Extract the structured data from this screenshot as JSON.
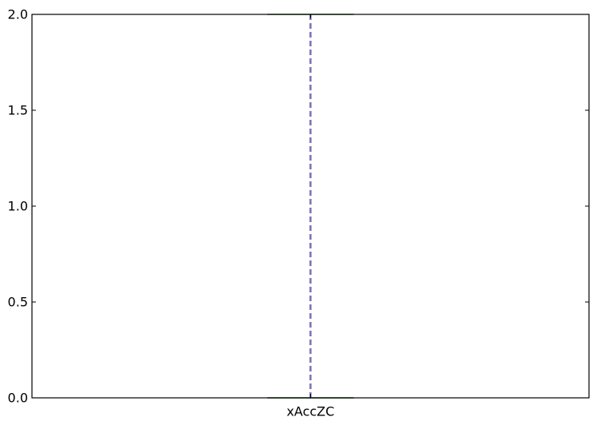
{
  "chart_data": {
    "type": "box",
    "categories": [
      "xAccZC"
    ],
    "series": [
      {
        "stats": {
          "min": 0.0,
          "q1": 0.0,
          "median": 0.0,
          "q3": 0.0,
          "max": 2.0
        }
      }
    ],
    "ylim": [
      0.0,
      2.0
    ],
    "yticks": [
      0.0,
      0.5,
      1.0,
      1.5,
      2.0
    ],
    "ytick_labels": [
      "0.0",
      "0.5",
      "1.0",
      "1.5",
      "2.0"
    ],
    "grid": false,
    "colors": {
      "whisker": "#7b6eb8",
      "cap": "#2e7d32",
      "axis": "#000000"
    }
  }
}
